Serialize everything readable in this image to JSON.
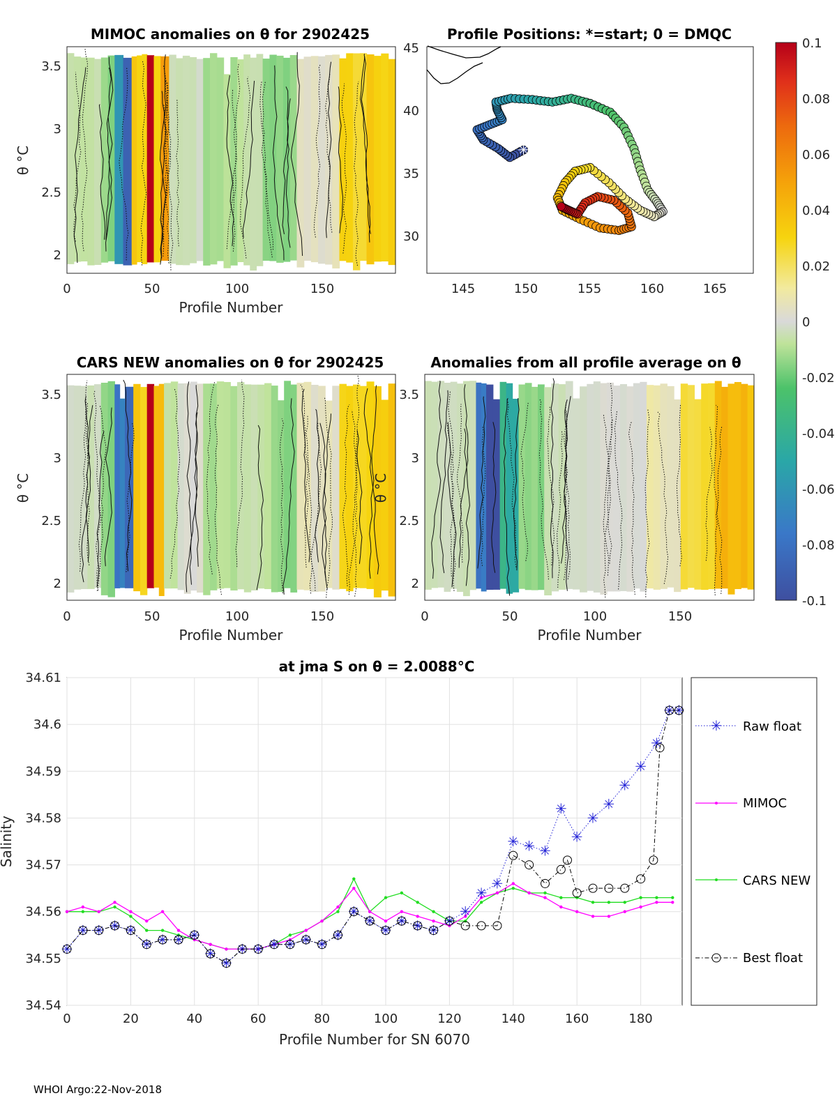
{
  "footer": "WHOI Argo:22-Nov-2018",
  "panels": {
    "mimoc": {
      "title": "MIMOC anomalies on θ  for 2902425",
      "xlabel": "Profile Number",
      "ylabel": "θ °C",
      "xticks": [
        "0",
        "50",
        "100",
        "150"
      ],
      "yticks": [
        "2",
        "2.5",
        "3",
        "3.5"
      ]
    },
    "positions": {
      "title": "Profile Positions: *=start; 0 = DMQC",
      "xticks": [
        "145",
        "150",
        "155",
        "160",
        "165"
      ],
      "yticks": [
        "30",
        "35",
        "40",
        "45"
      ]
    },
    "cars": {
      "title": "CARS NEW anomalies on θ for 2902425",
      "xlabel": "Profile Number",
      "ylabel": "θ °C",
      "xticks": [
        "0",
        "50",
        "100",
        "150"
      ],
      "yticks": [
        "2",
        "2.5",
        "3",
        "3.5"
      ]
    },
    "allavg": {
      "title": "Anomalies from all profile average on θ",
      "xlabel": "Profile Number",
      "ylabel": "θ °C",
      "xticks": [
        "0",
        "50",
        "100",
        "150"
      ],
      "yticks": [
        "2",
        "2.5",
        "3",
        "3.5"
      ]
    }
  },
  "colorbar": {
    "ticks": [
      "0.1",
      "0.08",
      "0.06",
      "0.04",
      "0.02",
      "0",
      "-0.02",
      "-0.04",
      "-0.06",
      "-0.08",
      "-0.1"
    ]
  },
  "chart_data": [
    {
      "type": "heatmap",
      "name": "mimoc",
      "title": "MIMOC anomalies on θ  for 2902425",
      "xlabel": "Profile Number",
      "ylabel": "θ °C",
      "xlim": [
        0,
        193
      ],
      "ylim": [
        1.88,
        3.65
      ],
      "bands": [
        [
          0,
          20,
          -0.01
        ],
        [
          20,
          28,
          -0.02
        ],
        [
          28,
          33,
          -0.06
        ],
        [
          33,
          38,
          -0.09
        ],
        [
          38,
          41,
          0.04
        ],
        [
          41,
          47,
          0.03
        ],
        [
          47,
          51,
          0.1
        ],
        [
          51,
          55,
          0.03
        ],
        [
          55,
          60,
          0.05
        ],
        [
          60,
          80,
          -0.005
        ],
        [
          80,
          100,
          -0.015
        ],
        [
          100,
          115,
          -0.01
        ],
        [
          115,
          135,
          -0.02
        ],
        [
          135,
          160,
          0.005
        ],
        [
          160,
          176,
          0.028
        ],
        [
          176,
          193,
          0.032
        ]
      ]
    },
    {
      "type": "scatter",
      "name": "positions",
      "title": "Profile Positions: *=start; 0 = DMQC",
      "xlim": [
        142,
        168
      ],
      "ylim": [
        27,
        45
      ],
      "start": [
        149.7,
        36.8
      ],
      "track": [
        [
          149.7,
          36.8
        ],
        [
          148.6,
          36.2
        ],
        [
          147.7,
          36.9
        ],
        [
          146.5,
          37.6
        ],
        [
          146.0,
          38.4
        ],
        [
          147.0,
          38.8
        ],
        [
          148.0,
          39.2
        ],
        [
          147.6,
          40.0
        ],
        [
          147.5,
          40.6
        ],
        [
          148.7,
          40.9
        ],
        [
          150.4,
          40.8
        ],
        [
          152.0,
          40.6
        ],
        [
          153.5,
          40.9
        ],
        [
          155.0,
          40.5
        ],
        [
          156.6,
          39.8
        ],
        [
          157.7,
          38.6
        ],
        [
          158.5,
          36.9
        ],
        [
          159.0,
          35.2
        ],
        [
          159.6,
          33.6
        ],
        [
          160.3,
          32.7
        ],
        [
          160.8,
          31.9
        ],
        [
          160.1,
          31.5
        ],
        [
          159.0,
          32.0
        ],
        [
          157.8,
          32.9
        ],
        [
          156.5,
          34.2
        ],
        [
          155.0,
          35.4
        ],
        [
          153.8,
          35.1
        ],
        [
          153.0,
          34.2
        ],
        [
          152.4,
          33.0
        ],
        [
          152.8,
          32.0
        ],
        [
          154.2,
          31.3
        ],
        [
          155.8,
          30.6
        ],
        [
          157.3,
          30.4
        ],
        [
          158.3,
          30.7
        ],
        [
          158.0,
          31.8
        ],
        [
          156.9,
          32.8
        ],
        [
          155.6,
          33.1
        ],
        [
          154.6,
          32.6
        ],
        [
          154.0,
          31.7
        ],
        [
          153.3,
          32.0
        ],
        [
          152.7,
          32.3
        ]
      ]
    },
    {
      "type": "heatmap",
      "name": "cars",
      "title": "CARS NEW anomalies on θ for 2902425",
      "xlabel": "Profile Number",
      "ylabel": "θ °C",
      "xlim": [
        0,
        193
      ],
      "ylim": [
        1.88,
        3.65
      ],
      "bands": [
        [
          0,
          20,
          -0.005
        ],
        [
          20,
          28,
          -0.02
        ],
        [
          28,
          34,
          -0.07
        ],
        [
          34,
          39,
          -0.09
        ],
        [
          39,
          43,
          0.04
        ],
        [
          43,
          47,
          0.03
        ],
        [
          47,
          51,
          0.1
        ],
        [
          51,
          57,
          0.04
        ],
        [
          57,
          65,
          -0.012
        ],
        [
          65,
          80,
          0.0
        ],
        [
          80,
          100,
          -0.015
        ],
        [
          100,
          120,
          -0.01
        ],
        [
          120,
          135,
          -0.02
        ],
        [
          135,
          160,
          0.005
        ],
        [
          160,
          176,
          0.03
        ],
        [
          176,
          193,
          0.034
        ]
      ]
    },
    {
      "type": "heatmap",
      "name": "allavg",
      "title": "Anomalies from all profile average on θ",
      "xlabel": "Profile Number",
      "ylabel": "θ °C",
      "xlim": [
        0,
        193
      ],
      "ylim": [
        1.88,
        3.65
      ],
      "bands": [
        [
          0,
          30,
          -0.005
        ],
        [
          30,
          36,
          -0.08
        ],
        [
          36,
          44,
          -0.1
        ],
        [
          44,
          55,
          -0.045
        ],
        [
          55,
          70,
          -0.02
        ],
        [
          70,
          95,
          -0.005
        ],
        [
          95,
          130,
          0.0
        ],
        [
          130,
          150,
          0.008
        ],
        [
          150,
          170,
          0.024
        ],
        [
          170,
          193,
          0.04
        ]
      ]
    },
    {
      "type": "line",
      "name": "salinity",
      "title": "at jma S on θ = 2.0088°C",
      "xlabel": "Profile Number for SN 6070",
      "ylabel": "Salinity",
      "xlim": [
        0,
        193
      ],
      "ylim": [
        34.54,
        34.61
      ],
      "xticks": [
        "0",
        "20",
        "40",
        "60",
        "80",
        "100",
        "120",
        "140",
        "160",
        "180"
      ],
      "yticks": [
        "34.54",
        "34.55",
        "34.56",
        "34.57",
        "34.58",
        "34.59",
        "34.6",
        "34.61"
      ],
      "series": [
        {
          "name": "Raw float",
          "color": "#1f1fd6",
          "x": [
            0,
            5,
            10,
            15,
            20,
            25,
            30,
            35,
            40,
            45,
            50,
            55,
            60,
            65,
            70,
            75,
            80,
            85,
            90,
            95,
            100,
            105,
            110,
            115,
            120,
            125,
            130,
            135,
            140,
            145,
            150,
            155,
            160,
            165,
            170,
            175,
            180,
            185,
            189,
            192
          ],
          "y": [
            34.552,
            34.556,
            34.556,
            34.557,
            34.556,
            34.553,
            34.554,
            34.554,
            34.555,
            34.551,
            34.549,
            34.552,
            34.552,
            34.553,
            34.553,
            34.554,
            34.553,
            34.555,
            34.56,
            34.558,
            34.556,
            34.558,
            34.557,
            34.556,
            34.558,
            34.56,
            34.564,
            34.566,
            34.575,
            34.574,
            34.573,
            34.582,
            34.576,
            34.58,
            34.583,
            34.587,
            34.591,
            34.596,
            34.603,
            34.603
          ]
        },
        {
          "name": "MIMOC",
          "color": "#ff00ff",
          "x": [
            0,
            5,
            10,
            15,
            20,
            25,
            30,
            35,
            40,
            45,
            50,
            55,
            60,
            65,
            70,
            75,
            80,
            85,
            90,
            95,
            100,
            105,
            110,
            115,
            120,
            125,
            130,
            135,
            140,
            145,
            150,
            155,
            160,
            165,
            170,
            175,
            180,
            185,
            190
          ],
          "y": [
            34.56,
            34.561,
            34.56,
            34.562,
            34.56,
            34.558,
            34.56,
            34.556,
            34.554,
            34.553,
            34.552,
            34.552,
            34.552,
            34.553,
            34.554,
            34.556,
            34.558,
            34.561,
            34.565,
            34.56,
            34.558,
            34.56,
            34.559,
            34.558,
            34.557,
            34.559,
            34.563,
            34.564,
            34.566,
            34.564,
            34.563,
            34.561,
            34.56,
            34.559,
            34.559,
            34.56,
            34.561,
            34.562,
            34.562
          ]
        },
        {
          "name": "CARS NEW",
          "color": "#22dd22",
          "x": [
            0,
            5,
            10,
            15,
            20,
            25,
            30,
            35,
            40,
            45,
            50,
            55,
            60,
            65,
            70,
            75,
            80,
            85,
            90,
            95,
            100,
            105,
            110,
            115,
            120,
            125,
            130,
            135,
            140,
            145,
            150,
            155,
            160,
            165,
            170,
            175,
            180,
            185,
            190
          ],
          "y": [
            34.56,
            34.56,
            34.56,
            34.561,
            34.559,
            34.556,
            34.556,
            34.555,
            34.554,
            34.553,
            34.552,
            34.552,
            34.552,
            34.553,
            34.555,
            34.556,
            34.558,
            34.56,
            34.567,
            34.56,
            34.563,
            34.564,
            34.562,
            34.56,
            34.558,
            34.558,
            34.562,
            34.564,
            34.565,
            34.564,
            34.564,
            34.563,
            34.563,
            34.562,
            34.562,
            34.562,
            34.563,
            34.563,
            34.563
          ]
        },
        {
          "name": "Best float",
          "color": "#000000",
          "x": [
            0,
            5,
            10,
            15,
            20,
            25,
            30,
            35,
            40,
            45,
            50,
            55,
            60,
            65,
            70,
            75,
            80,
            85,
            90,
            95,
            100,
            105,
            110,
            115,
            120,
            125,
            130,
            135,
            140,
            145,
            150,
            155,
            157,
            160,
            165,
            170,
            175,
            180,
            184,
            186,
            189,
            192
          ],
          "y": [
            34.552,
            34.556,
            34.556,
            34.557,
            34.556,
            34.553,
            34.554,
            34.554,
            34.555,
            34.551,
            34.549,
            34.552,
            34.552,
            34.553,
            34.553,
            34.554,
            34.553,
            34.555,
            34.56,
            34.558,
            34.556,
            34.558,
            34.557,
            34.556,
            34.558,
            34.557,
            34.557,
            34.557,
            34.572,
            34.57,
            34.566,
            34.569,
            34.571,
            34.564,
            34.565,
            34.565,
            34.565,
            34.567,
            34.571,
            34.595,
            34.603,
            34.603
          ]
        }
      ]
    }
  ]
}
